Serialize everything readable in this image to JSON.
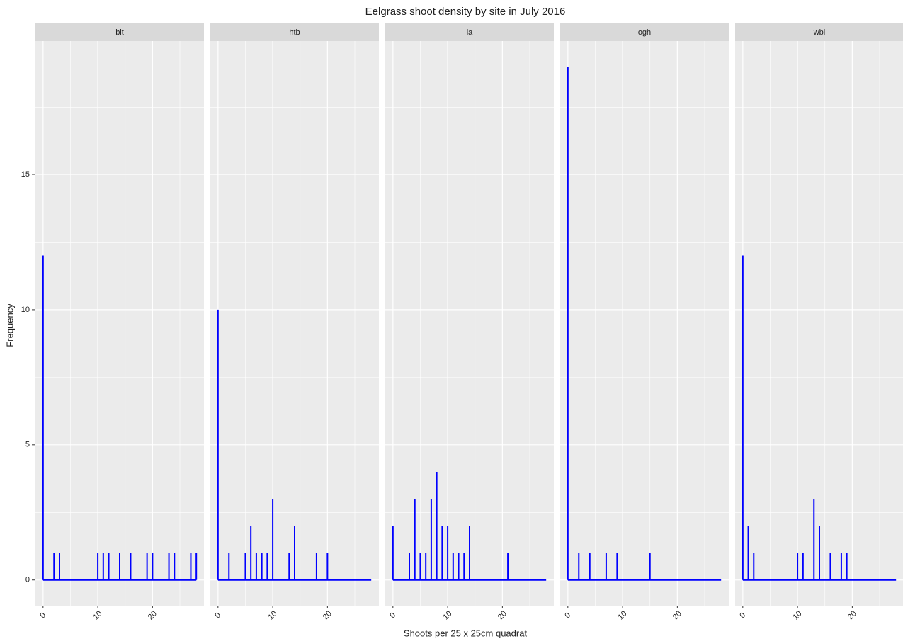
{
  "chart_data": {
    "type": "spike",
    "title": "Eelgrass shoot density by site in July 2016",
    "x_label": "Shoots per 25 x 25cm quadrat",
    "y_label": "Frequency",
    "color": "#0000ff",
    "grid": true,
    "xlim": [
      -1.4,
      29.4
    ],
    "xticks": [
      0,
      10,
      20
    ],
    "ylim": [
      -0.95,
      19.95
    ],
    "yticks": [
      0,
      5,
      10,
      15
    ],
    "x": [
      0,
      1,
      2,
      3,
      4,
      5,
      6,
      7,
      8,
      9,
      10,
      11,
      12,
      13,
      14,
      15,
      16,
      17,
      18,
      19,
      20,
      21,
      22,
      23,
      24,
      25,
      26,
      27,
      28
    ],
    "series": [
      {
        "name": "blt",
        "values": [
          12,
          0,
          1,
          1,
          0,
          0,
          0,
          0,
          0,
          0,
          1,
          1,
          1,
          0,
          1,
          0,
          1,
          0,
          0,
          1,
          1,
          0,
          0,
          1,
          1,
          0,
          0,
          1,
          1
        ]
      },
      {
        "name": "htb",
        "values": [
          10,
          0,
          1,
          0,
          0,
          1,
          2,
          1,
          1,
          1,
          3,
          0,
          0,
          1,
          2,
          0,
          0,
          0,
          1,
          0,
          1,
          0,
          0,
          0,
          0,
          0,
          0,
          0,
          0
        ]
      },
      {
        "name": "la",
        "values": [
          2,
          0,
          0,
          1,
          3,
          1,
          1,
          3,
          4,
          2,
          2,
          1,
          1,
          1,
          2,
          0,
          0,
          0,
          0,
          0,
          0,
          1,
          0,
          0,
          0,
          0,
          0,
          0,
          0
        ]
      },
      {
        "name": "ogh",
        "values": [
          19,
          0,
          1,
          0,
          1,
          0,
          0,
          1,
          0,
          1,
          0,
          0,
          0,
          0,
          0,
          1,
          0,
          0,
          0,
          0,
          0,
          0,
          0,
          0,
          0,
          0,
          0,
          0,
          0
        ]
      },
      {
        "name": "wbl",
        "values": [
          12,
          2,
          1,
          0,
          0,
          0,
          0,
          0,
          0,
          0,
          1,
          1,
          0,
          3,
          2,
          0,
          1,
          0,
          1,
          1,
          0,
          0,
          0,
          0,
          0,
          0,
          0,
          0,
          0
        ]
      }
    ]
  }
}
